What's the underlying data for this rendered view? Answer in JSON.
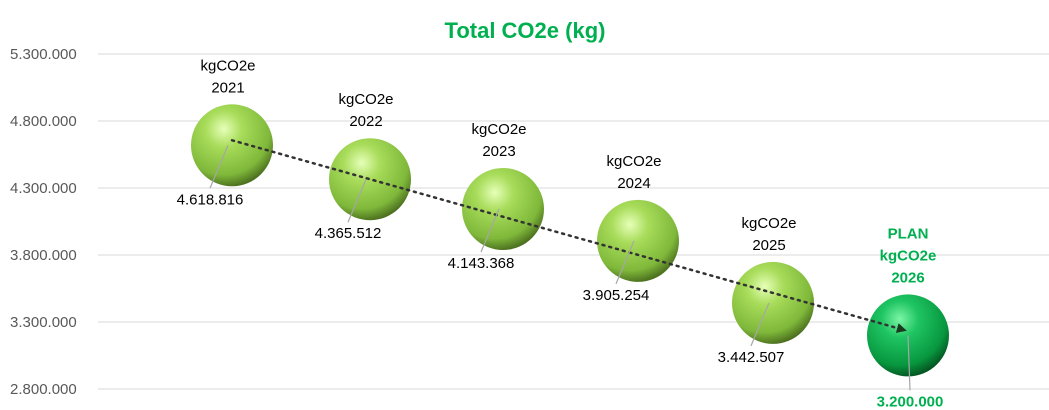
{
  "chart_data": {
    "type": "bubble",
    "title": "Total CO2e (kg)",
    "ylim": [
      2800000,
      5300000
    ],
    "yticks": [
      2800000,
      3300000,
      3800000,
      4300000,
      4800000,
      5300000
    ],
    "ytick_labels": [
      "2.800.000",
      "3.300.000",
      "3.800.000",
      "4.300.000",
      "4.800.000",
      "5.300.000"
    ],
    "grid": true,
    "trendline": "linear, dotted, arrow end",
    "points": [
      {
        "label": [
          "kgCO2e",
          "2021"
        ],
        "value": 4618816,
        "value_label": "4.618.816",
        "color": "#92D050"
      },
      {
        "label": [
          "kgCO2e",
          "2022"
        ],
        "value": 4365512,
        "value_label": "4.365.512",
        "color": "#92D050"
      },
      {
        "label": [
          "kgCO2e",
          "2023"
        ],
        "value": 4143368,
        "value_label": "4.143.368",
        "color": "#92D050"
      },
      {
        "label": [
          "kgCO2e",
          "2024"
        ],
        "value": 3905254,
        "value_label": "3.905.254",
        "color": "#92D050"
      },
      {
        "label": [
          "kgCO2e",
          "2025"
        ],
        "value": 3442507,
        "value_label": "3.442.507",
        "color": "#92D050"
      },
      {
        "label": [
          "PLAN",
          "kgCO2e",
          "2026"
        ],
        "value": 3200000,
        "value_label": "3.200.000",
        "color": "#00B050",
        "highlight": true
      }
    ]
  }
}
